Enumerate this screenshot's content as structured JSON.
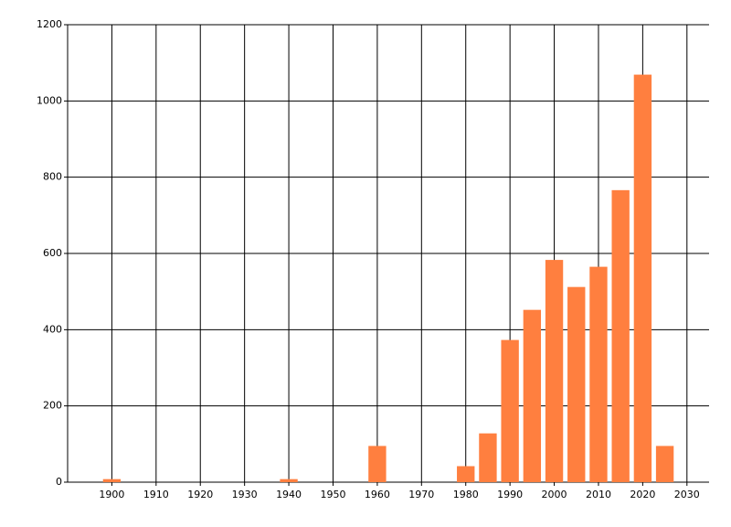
{
  "chart_data": {
    "type": "bar",
    "x": [
      1900,
      1940,
      1960,
      1980,
      1985,
      1990,
      1995,
      2000,
      2005,
      2010,
      2015,
      2020,
      2025
    ],
    "values": [
      8,
      8,
      95,
      42,
      128,
      373,
      452,
      583,
      512,
      565,
      766,
      1069,
      95
    ],
    "color": "#ff7f3f",
    "xlim": [
      1890,
      2035
    ],
    "ylim": [
      0,
      1200
    ],
    "xticks": [
      1900,
      1910,
      1920,
      1930,
      1940,
      1950,
      1960,
      1970,
      1980,
      1990,
      2000,
      2010,
      2020,
      2030
    ],
    "yticks": [
      0,
      200,
      400,
      600,
      800,
      1000,
      1200
    ],
    "grid": true
  }
}
